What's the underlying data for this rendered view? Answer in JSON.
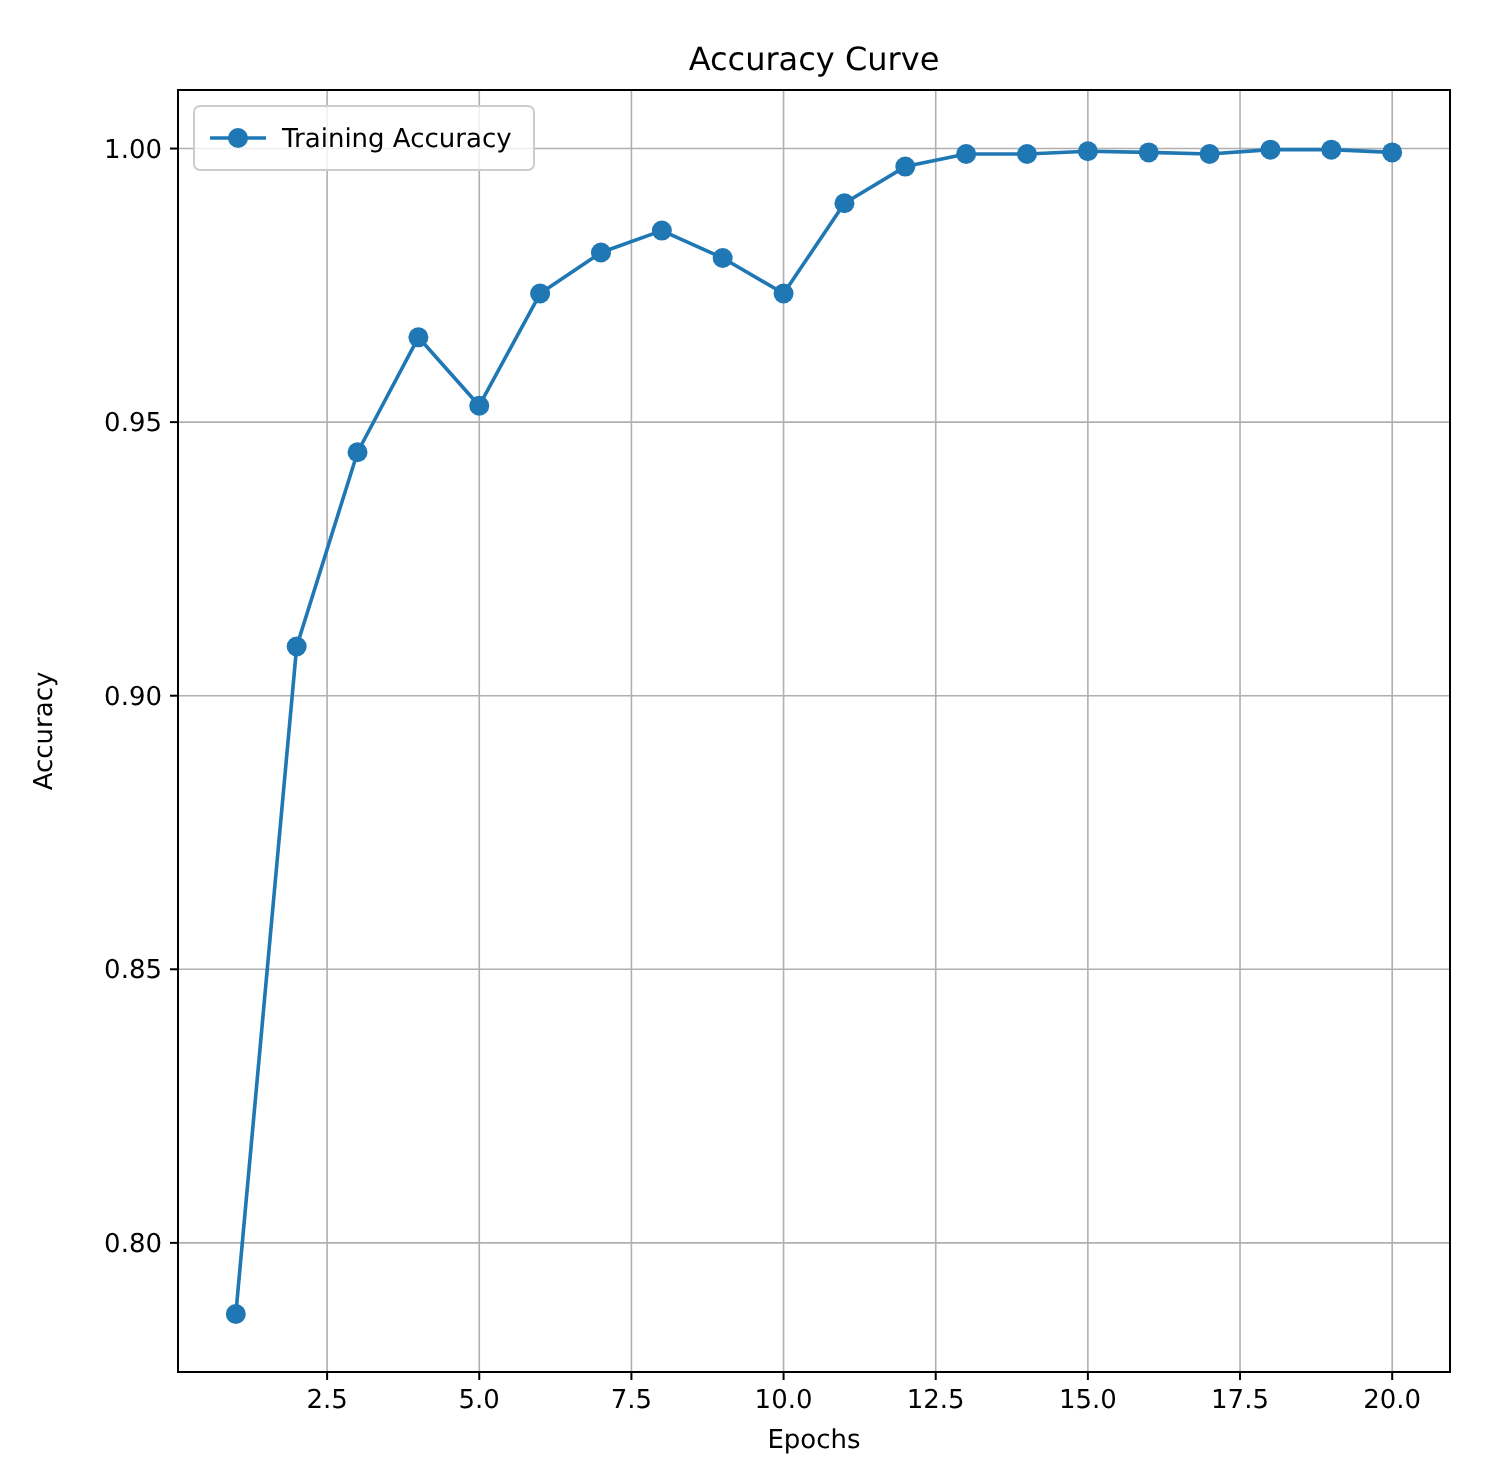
{
  "chart_data": {
    "type": "line",
    "title": "Accuracy Curve",
    "xlabel": "Epochs",
    "ylabel": "Accuracy",
    "x": [
      1,
      2,
      3,
      4,
      5,
      6,
      7,
      8,
      9,
      10,
      11,
      12,
      13,
      14,
      15,
      16,
      17,
      18,
      19,
      20
    ],
    "series": [
      {
        "name": "Training Accuracy",
        "color": "#1f77b4",
        "values": [
          0.787,
          0.909,
          0.9445,
          0.9655,
          0.953,
          0.9735,
          0.981,
          0.985,
          0.98,
          0.9735,
          0.99,
          0.9967,
          0.999,
          0.999,
          0.9995,
          0.9993,
          0.999,
          0.9998,
          0.9998,
          0.9993
        ]
      }
    ],
    "xlim": [
      0.05,
      20.95
    ],
    "xticks": [
      {
        "value": 2.5,
        "label": "2.5"
      },
      {
        "value": 5,
        "label": "5.0"
      },
      {
        "value": 7.5,
        "label": "7.5"
      },
      {
        "value": 10,
        "label": "10.0"
      },
      {
        "value": 12.5,
        "label": "12.5"
      },
      {
        "value": 15,
        "label": "15.0"
      },
      {
        "value": 17.5,
        "label": "17.5"
      },
      {
        "value": 20,
        "label": "20.0"
      }
    ],
    "ylim": [
      0.7764,
      1.0107
    ],
    "yticks": [
      {
        "value": 0.8,
        "label": "0.80"
      },
      {
        "value": 0.85,
        "label": "0.85"
      },
      {
        "value": 0.9,
        "label": "0.90"
      },
      {
        "value": 0.95,
        "label": "0.95"
      },
      {
        "value": 1.0,
        "label": "1.00"
      }
    ],
    "grid": true,
    "legend": "top left",
    "marker": "circle",
    "line_style": "solid"
  }
}
